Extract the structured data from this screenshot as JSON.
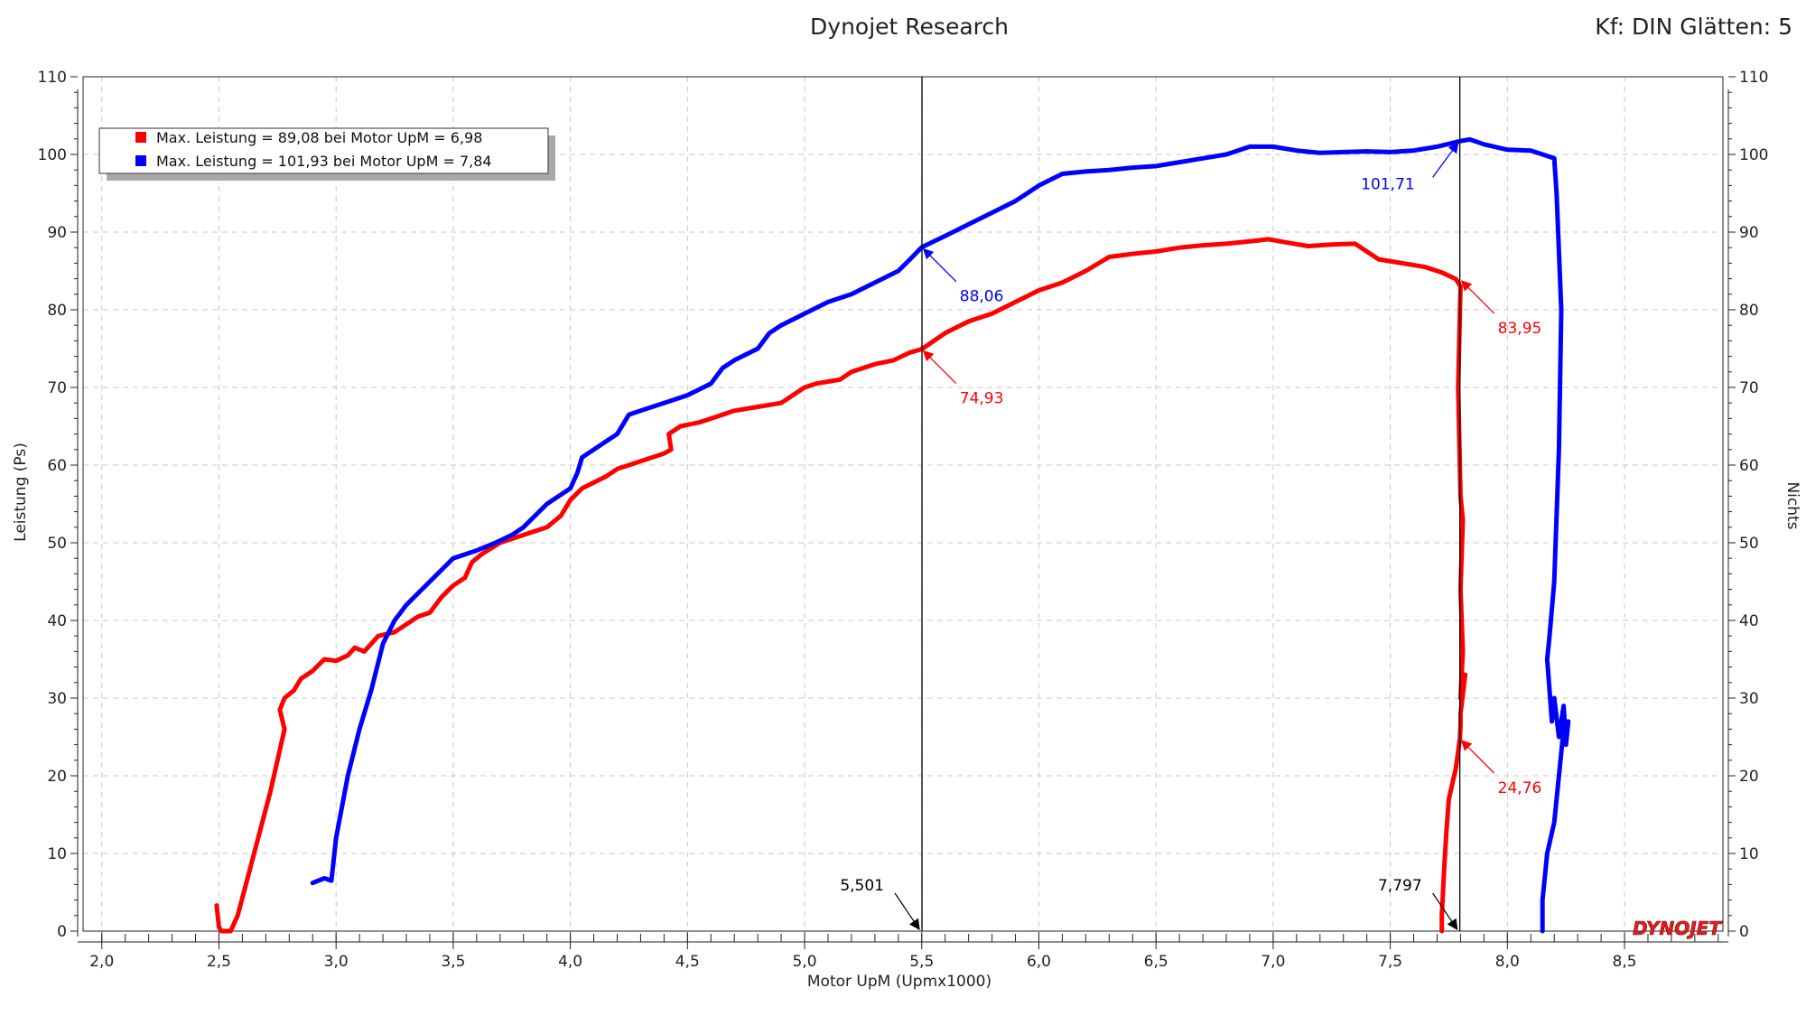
{
  "header": {
    "title": "Dynojet Research",
    "correction": "Kf: DIN Glätten: 5"
  },
  "brand": {
    "logo_text": "DYNOJET"
  },
  "colors": {
    "run1": "#ff0000",
    "run2": "#0000ff",
    "grid": "#c8c8c8"
  },
  "chart_data": {
    "type": "line",
    "title": "Dynojet Research",
    "xlabel": "Motor UpM (Upmx1000)",
    "ylabel": "Leistung (Ps)",
    "y2label": "Nichts",
    "xlim": [
      1.92,
      8.92
    ],
    "ylim": [
      0,
      110
    ],
    "x_ticks": [
      "2,0",
      "2,5",
      "3,0",
      "3,5",
      "4,0",
      "4,5",
      "5,0",
      "5,5",
      "6,0",
      "6,5",
      "7,0",
      "7,5",
      "8,0",
      "8,5"
    ],
    "x_tick_values": [
      2.0,
      2.5,
      3.0,
      3.5,
      4.0,
      4.5,
      5.0,
      5.5,
      6.0,
      6.5,
      7.0,
      7.5,
      8.0,
      8.5
    ],
    "y_ticks": [
      "0",
      "10",
      "20",
      "30",
      "40",
      "50",
      "60",
      "70",
      "80",
      "90",
      "100",
      "110"
    ],
    "y_tick_values": [
      0,
      10,
      20,
      30,
      40,
      50,
      60,
      70,
      80,
      90,
      100,
      110
    ],
    "grid": true,
    "legend_position": "top-left",
    "legend": [
      "Max. Leistung = 89,08 bei Motor UpM = 6,98",
      "Max. Leistung = 101,93 bei Motor UpM = 7,84"
    ],
    "series": [
      {
        "color": "#ff0000",
        "points": [
          [
            2.49,
            3.3
          ],
          [
            2.5,
            0.5
          ],
          [
            2.51,
            0
          ],
          [
            2.55,
            0
          ],
          [
            2.58,
            2
          ],
          [
            2.65,
            10
          ],
          [
            2.72,
            18
          ],
          [
            2.78,
            26
          ],
          [
            2.76,
            28.5
          ],
          [
            2.78,
            30
          ],
          [
            2.82,
            31
          ],
          [
            2.85,
            32.5
          ],
          [
            2.9,
            33.5
          ],
          [
            2.95,
            35
          ],
          [
            3.0,
            34.8
          ],
          [
            3.05,
            35.5
          ],
          [
            3.08,
            36.5
          ],
          [
            3.12,
            36
          ],
          [
            3.18,
            38
          ],
          [
            3.25,
            38.5
          ],
          [
            3.3,
            39.5
          ],
          [
            3.35,
            40.5
          ],
          [
            3.4,
            41
          ],
          [
            3.45,
            43
          ],
          [
            3.5,
            44.5
          ],
          [
            3.55,
            45.5
          ],
          [
            3.58,
            47.5
          ],
          [
            3.62,
            48.5
          ],
          [
            3.7,
            50
          ],
          [
            3.8,
            51
          ],
          [
            3.9,
            52
          ],
          [
            3.96,
            53.5
          ],
          [
            4.0,
            55.5
          ],
          [
            4.05,
            57
          ],
          [
            4.15,
            58.5
          ],
          [
            4.2,
            59.5
          ],
          [
            4.3,
            60.5
          ],
          [
            4.4,
            61.5
          ],
          [
            4.43,
            62
          ],
          [
            4.42,
            64
          ],
          [
            4.47,
            65
          ],
          [
            4.55,
            65.5
          ],
          [
            4.62,
            66.2
          ],
          [
            4.7,
            67
          ],
          [
            4.8,
            67.5
          ],
          [
            4.9,
            68
          ],
          [
            4.95,
            69
          ],
          [
            5.0,
            70
          ],
          [
            5.05,
            70.5
          ],
          [
            5.15,
            71
          ],
          [
            5.2,
            72
          ],
          [
            5.3,
            73
          ],
          [
            5.38,
            73.5
          ],
          [
            5.45,
            74.5
          ],
          [
            5.5,
            74.93
          ],
          [
            5.6,
            77
          ],
          [
            5.7,
            78.5
          ],
          [
            5.8,
            79.5
          ],
          [
            5.9,
            81
          ],
          [
            6.0,
            82.5
          ],
          [
            6.1,
            83.5
          ],
          [
            6.2,
            85
          ],
          [
            6.3,
            86.8
          ],
          [
            6.4,
            87.2
          ],
          [
            6.5,
            87.5
          ],
          [
            6.6,
            88
          ],
          [
            6.7,
            88.3
          ],
          [
            6.8,
            88.5
          ],
          [
            6.9,
            88.8
          ],
          [
            6.98,
            89.08
          ],
          [
            7.05,
            88.7
          ],
          [
            7.15,
            88.2
          ],
          [
            7.25,
            88.4
          ],
          [
            7.35,
            88.5
          ],
          [
            7.45,
            86.5
          ],
          [
            7.55,
            86
          ],
          [
            7.65,
            85.5
          ],
          [
            7.72,
            84.8
          ],
          [
            7.78,
            83.95
          ],
          [
            7.8,
            83
          ],
          [
            7.79,
            70
          ],
          [
            7.8,
            56
          ],
          [
            7.81,
            53
          ],
          [
            7.8,
            44
          ],
          [
            7.81,
            36
          ],
          [
            7.8,
            30
          ],
          [
            7.82,
            33
          ],
          [
            7.8,
            28
          ],
          [
            7.8,
            26.5
          ],
          [
            7.797,
            24.76
          ],
          [
            7.78,
            21
          ],
          [
            7.75,
            17
          ],
          [
            7.74,
            13
          ],
          [
            7.73,
            8
          ],
          [
            7.72,
            2
          ],
          [
            7.72,
            0
          ]
        ]
      },
      {
        "color": "#0000ff",
        "points": [
          [
            2.9,
            6.2
          ],
          [
            2.95,
            6.8
          ],
          [
            2.98,
            6.5
          ],
          [
            3.0,
            12
          ],
          [
            3.05,
            20
          ],
          [
            3.1,
            26
          ],
          [
            3.15,
            31
          ],
          [
            3.2,
            37
          ],
          [
            3.25,
            40
          ],
          [
            3.3,
            42
          ],
          [
            3.35,
            43.5
          ],
          [
            3.4,
            45
          ],
          [
            3.45,
            46.5
          ],
          [
            3.5,
            48
          ],
          [
            3.55,
            48.5
          ],
          [
            3.6,
            49
          ],
          [
            3.68,
            50
          ],
          [
            3.75,
            51
          ],
          [
            3.8,
            52
          ],
          [
            3.85,
            53.5
          ],
          [
            3.9,
            55
          ],
          [
            3.95,
            56
          ],
          [
            4.0,
            57
          ],
          [
            4.03,
            59
          ],
          [
            4.05,
            61
          ],
          [
            4.1,
            62
          ],
          [
            4.15,
            63
          ],
          [
            4.2,
            64
          ],
          [
            4.25,
            66.5
          ],
          [
            4.3,
            67
          ],
          [
            4.4,
            68
          ],
          [
            4.5,
            69
          ],
          [
            4.6,
            70.5
          ],
          [
            4.65,
            72.5
          ],
          [
            4.7,
            73.5
          ],
          [
            4.8,
            75
          ],
          [
            4.85,
            77
          ],
          [
            4.9,
            78
          ],
          [
            5.0,
            79.5
          ],
          [
            5.1,
            81
          ],
          [
            5.2,
            82
          ],
          [
            5.3,
            83.5
          ],
          [
            5.4,
            85
          ],
          [
            5.45,
            86.5
          ],
          [
            5.5,
            88.06
          ],
          [
            5.6,
            89.5
          ],
          [
            5.7,
            91
          ],
          [
            5.8,
            92.5
          ],
          [
            5.9,
            94
          ],
          [
            6.0,
            96
          ],
          [
            6.1,
            97.5
          ],
          [
            6.2,
            97.8
          ],
          [
            6.3,
            98
          ],
          [
            6.4,
            98.3
          ],
          [
            6.5,
            98.5
          ],
          [
            6.6,
            99
          ],
          [
            6.7,
            99.5
          ],
          [
            6.8,
            100
          ],
          [
            6.9,
            101
          ],
          [
            7.0,
            101
          ],
          [
            7.1,
            100.5
          ],
          [
            7.2,
            100.2
          ],
          [
            7.3,
            100.3
          ],
          [
            7.4,
            100.4
          ],
          [
            7.5,
            100.3
          ],
          [
            7.6,
            100.5
          ],
          [
            7.7,
            101
          ],
          [
            7.797,
            101.71
          ],
          [
            7.84,
            101.93
          ],
          [
            7.9,
            101.3
          ],
          [
            8.0,
            100.6
          ],
          [
            8.1,
            100.5
          ],
          [
            8.2,
            99.5
          ],
          [
            8.21,
            95
          ],
          [
            8.23,
            80
          ],
          [
            8.22,
            62
          ],
          [
            8.2,
            45
          ],
          [
            8.18,
            38
          ],
          [
            8.17,
            35
          ],
          [
            8.19,
            27
          ],
          [
            8.2,
            30
          ],
          [
            8.22,
            25
          ],
          [
            8.24,
            29
          ],
          [
            8.25,
            24
          ],
          [
            8.26,
            27
          ],
          [
            8.24,
            26
          ],
          [
            8.2,
            14
          ],
          [
            8.17,
            10
          ],
          [
            8.15,
            4
          ],
          [
            8.15,
            0
          ]
        ]
      }
    ],
    "vertical_markers": [
      5.501,
      7.797
    ],
    "marker_labels": [
      "5,501",
      "7,797"
    ],
    "annotations": [
      {
        "text": "88,06",
        "x": 5.5,
        "y": 88.06,
        "color": "#0000ff"
      },
      {
        "text": "74,93",
        "x": 5.5,
        "y": 74.93,
        "color": "#ff0000"
      },
      {
        "text": "101,71",
        "x": 7.797,
        "y": 101.71,
        "color": "#0000ff"
      },
      {
        "text": "83,95",
        "x": 7.797,
        "y": 83.95,
        "color": "#ff0000"
      },
      {
        "text": "24,76",
        "x": 7.797,
        "y": 24.76,
        "color": "#ff0000"
      }
    ]
  }
}
